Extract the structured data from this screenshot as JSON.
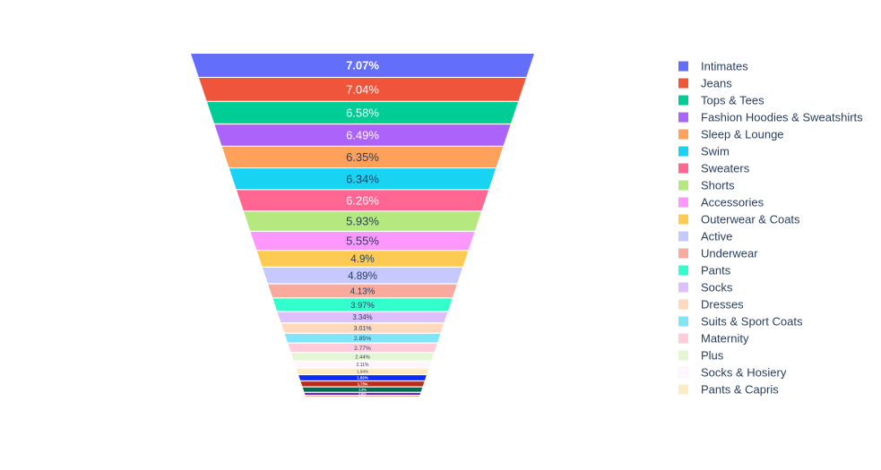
{
  "chart_data": {
    "type": "funnelarea",
    "text_format": "percent",
    "legend_position": "right",
    "slices": [
      {
        "label": "Intimates",
        "percent": "7.07%",
        "value": 7.07,
        "color": "#636efa"
      },
      {
        "label": "Jeans",
        "percent": "7.04%",
        "value": 7.04,
        "color": "#EF553B"
      },
      {
        "label": "Tops & Tees",
        "percent": "6.58%",
        "value": 6.58,
        "color": "#00cc96"
      },
      {
        "label": "Fashion Hoodies & Sweatshirts",
        "percent": "6.49%",
        "value": 6.49,
        "color": "#ab63fa"
      },
      {
        "label": "Sleep & Lounge",
        "percent": "6.35%",
        "value": 6.35,
        "color": "#FFA15A"
      },
      {
        "label": "Swim",
        "percent": "6.34%",
        "value": 6.34,
        "color": "#19d3f3"
      },
      {
        "label": "Sweaters",
        "percent": "6.26%",
        "value": 6.26,
        "color": "#FF6692"
      },
      {
        "label": "Shorts",
        "percent": "5.93%",
        "value": 5.93,
        "color": "#B6E880"
      },
      {
        "label": "Accessories",
        "percent": "5.55%",
        "value": 5.55,
        "color": "#FF97FF"
      },
      {
        "label": "Outerwear & Coats",
        "percent": "4.9%",
        "value": 4.9,
        "color": "#FECB52"
      },
      {
        "label": "Active",
        "percent": "4.89%",
        "value": 4.89,
        "color": "#c6c9fd"
      },
      {
        "label": "Underwear",
        "percent": "4.13%",
        "value": 4.13,
        "color": "#f8aa9d"
      },
      {
        "label": "Pants",
        "percent": "3.97%",
        "value": 3.97,
        "color": "#33ffcc"
      },
      {
        "label": "Socks",
        "percent": "3.34%",
        "value": 3.34,
        "color": "#ddc1fd"
      },
      {
        "label": "Dresses",
        "percent": "3.01%",
        "value": 3.01,
        "color": "#ffd9bd"
      },
      {
        "label": "Suits & Sport Coats",
        "percent": "2.85%",
        "value": 2.85,
        "color": "#7fe6f8"
      },
      {
        "label": "Maternity",
        "percent": "2.77%",
        "value": 2.77,
        "color": "#ffccdb"
      },
      {
        "label": "Plus",
        "percent": "2.44%",
        "value": 2.44,
        "color": "#e5f6d4"
      },
      {
        "label": "Socks & Hosiery",
        "percent": "2.11%",
        "value": 2.11,
        "color": "#fff6ff"
      },
      {
        "label": "Pants & Capris",
        "percent": "1.94%",
        "value": 1.94,
        "color": "#ffebc2"
      },
      {
        "label": "",
        "percent": "1.82%",
        "value": 1.82,
        "color": "#0d2cf0"
      },
      {
        "label": "",
        "percent": "1.73%",
        "value": 1.73,
        "color": "#b62c1d"
      },
      {
        "label": "",
        "percent": "1.6%",
        "value": 1.6,
        "color": "#006b4c"
      },
      {
        "label": "",
        "percent": "0.89%",
        "value": 0.89,
        "color": "#6b24c4"
      },
      {
        "label": "",
        "percent": "0.46%",
        "value": 0.46,
        "color": "#c46b10"
      }
    ]
  }
}
